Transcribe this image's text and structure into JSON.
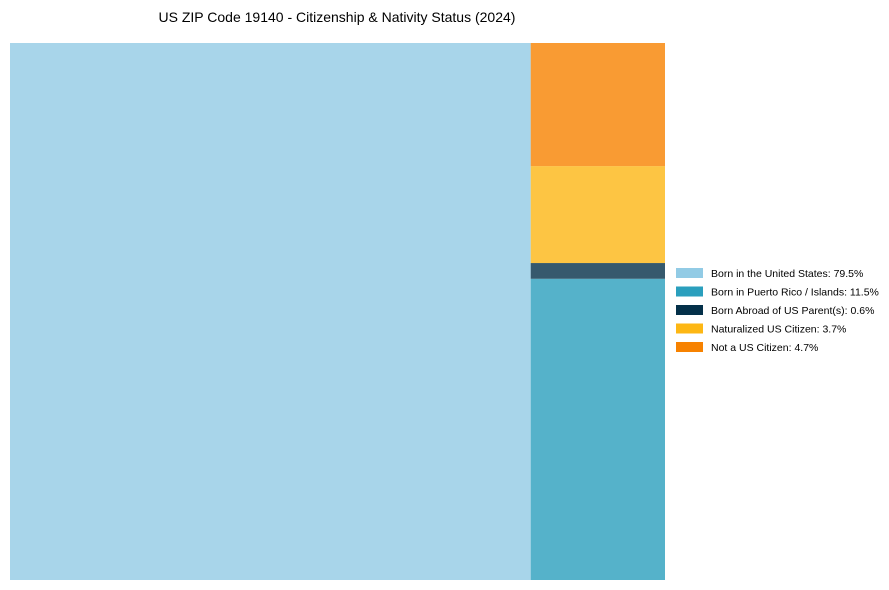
{
  "chart_data": {
    "type": "treemap",
    "title": "US ZIP Code 19140 - Citizenship & Nativity Status (2024)",
    "legend_position": "right",
    "items": [
      {
        "label": "Born in the United States",
        "value": 79.5,
        "color": "#92cbe5",
        "legend": "Born in the United States: 79.5%"
      },
      {
        "label": "Born in Puerto Rico / Islands",
        "value": 11.5,
        "color": "#2a9fbd",
        "legend": "Born in Puerto Rico / Islands: 11.5%"
      },
      {
        "label": "Born Abroad of US Parent(s)",
        "value": 0.6,
        "color": "#043049",
        "legend": "Born Abroad of US Parent(s): 0.6%"
      },
      {
        "label": "Naturalized US Citizen",
        "value": 3.7,
        "color": "#fdb714",
        "legend": "Naturalized US Citizen: 3.7%"
      },
      {
        "label": "Not a US Citizen",
        "value": 4.7,
        "color": "#f78200",
        "legend": "Not a US Citizen: 4.7%"
      }
    ]
  }
}
